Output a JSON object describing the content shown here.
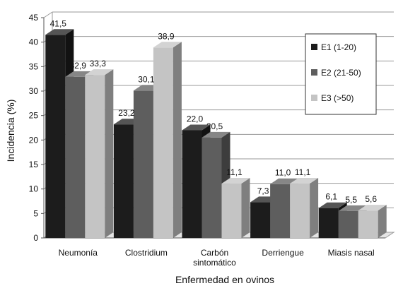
{
  "chart_data": {
    "type": "bar",
    "title": "",
    "xlabel": "Enfermedad en ovinos",
    "ylabel": "Incidencia (%)",
    "ylim": [
      0,
      45
    ],
    "yticks": [
      "0",
      "5",
      "10",
      "15",
      "20",
      "25",
      "30",
      "35",
      "40",
      "45"
    ],
    "grid": true,
    "legend_position": "top-right",
    "categories": [
      [
        "Neumonía"
      ],
      [
        "Clostridium"
      ],
      [
        "Carbón",
        "sintomático"
      ],
      [
        "Derriengue"
      ],
      [
        "Miasis nasal"
      ]
    ],
    "series": [
      {
        "name": "E1 (1-20)",
        "color": "#1c1c1c",
        "values": [
          41.5,
          23.2,
          22.0,
          7.3,
          6.1
        ],
        "labels": [
          "41,5",
          "23,2",
          "22,0",
          "7,3",
          "6,1"
        ]
      },
      {
        "name": "E2 (21-50)",
        "color": "#5e5e5e",
        "values": [
          32.9,
          30.1,
          20.5,
          11.0,
          5.5
        ],
        "labels": [
          "32,9",
          "30,1",
          "20,5",
          "11,0",
          "5,5"
        ]
      },
      {
        "name": "E3 (>50)",
        "color": "#c4c4c4",
        "values": [
          33.3,
          38.9,
          11.1,
          11.1,
          5.6
        ],
        "labels": [
          "33,3",
          "38,9",
          "11,1",
          "11,1",
          "5,6"
        ]
      }
    ]
  }
}
